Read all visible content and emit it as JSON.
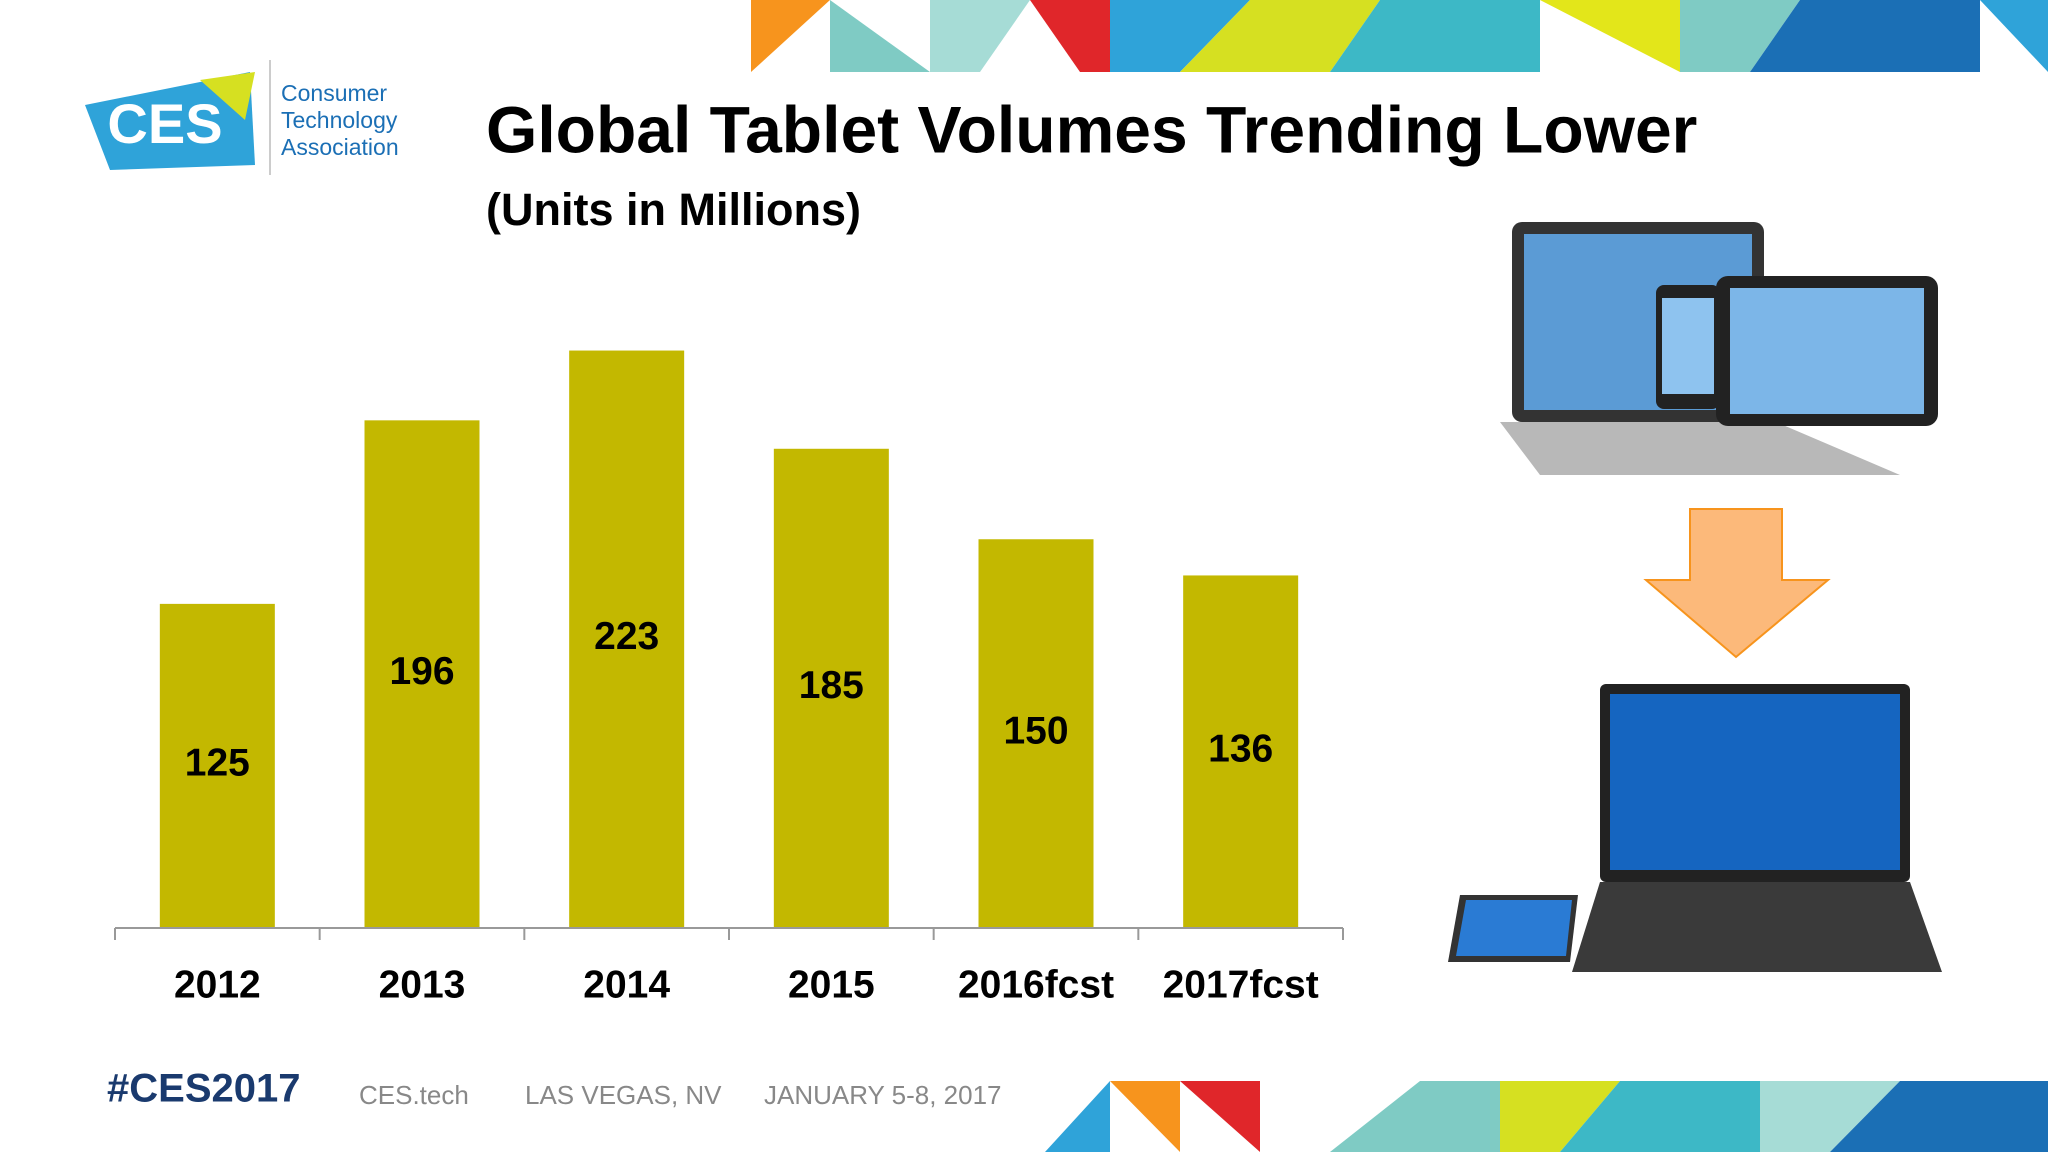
{
  "logo": {
    "mark": "CES",
    "lines": [
      "Consumer",
      "Technology",
      "Association"
    ]
  },
  "chart_data": {
    "type": "bar",
    "title": "Global Tablet Volumes Trending Lower",
    "subtitle": "(Units in Millions)",
    "categories": [
      "2012",
      "2013",
      "2014",
      "2015",
      "2016fcst",
      "2017fcst"
    ],
    "values": [
      125,
      196,
      223,
      185,
      150,
      136
    ],
    "color": "#c3b800"
  },
  "footer": {
    "hashtag": "#CES2017",
    "site": "CES.tech",
    "location": "LAS VEGAS, NV",
    "dates": "JANUARY 5-8, 2017"
  }
}
